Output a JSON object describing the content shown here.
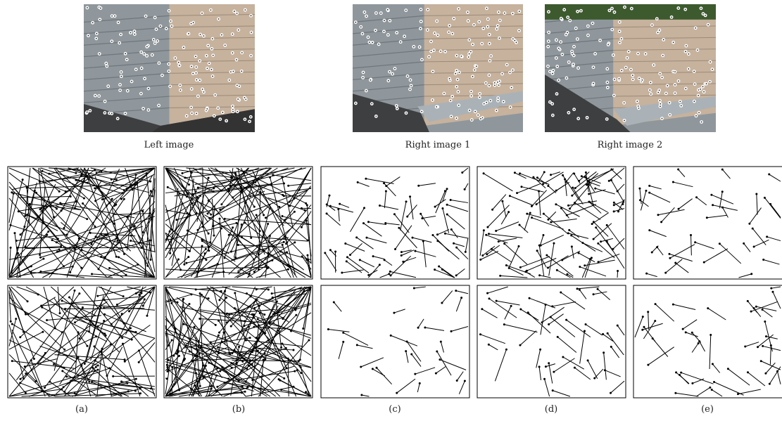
{
  "figure": {
    "top_captions": [
      "Left image",
      "Right image 1",
      "Right image 2"
    ],
    "panel_captions": [
      "(a)",
      "(b)",
      "(c)",
      "(d)",
      "(e)"
    ]
  }
}
